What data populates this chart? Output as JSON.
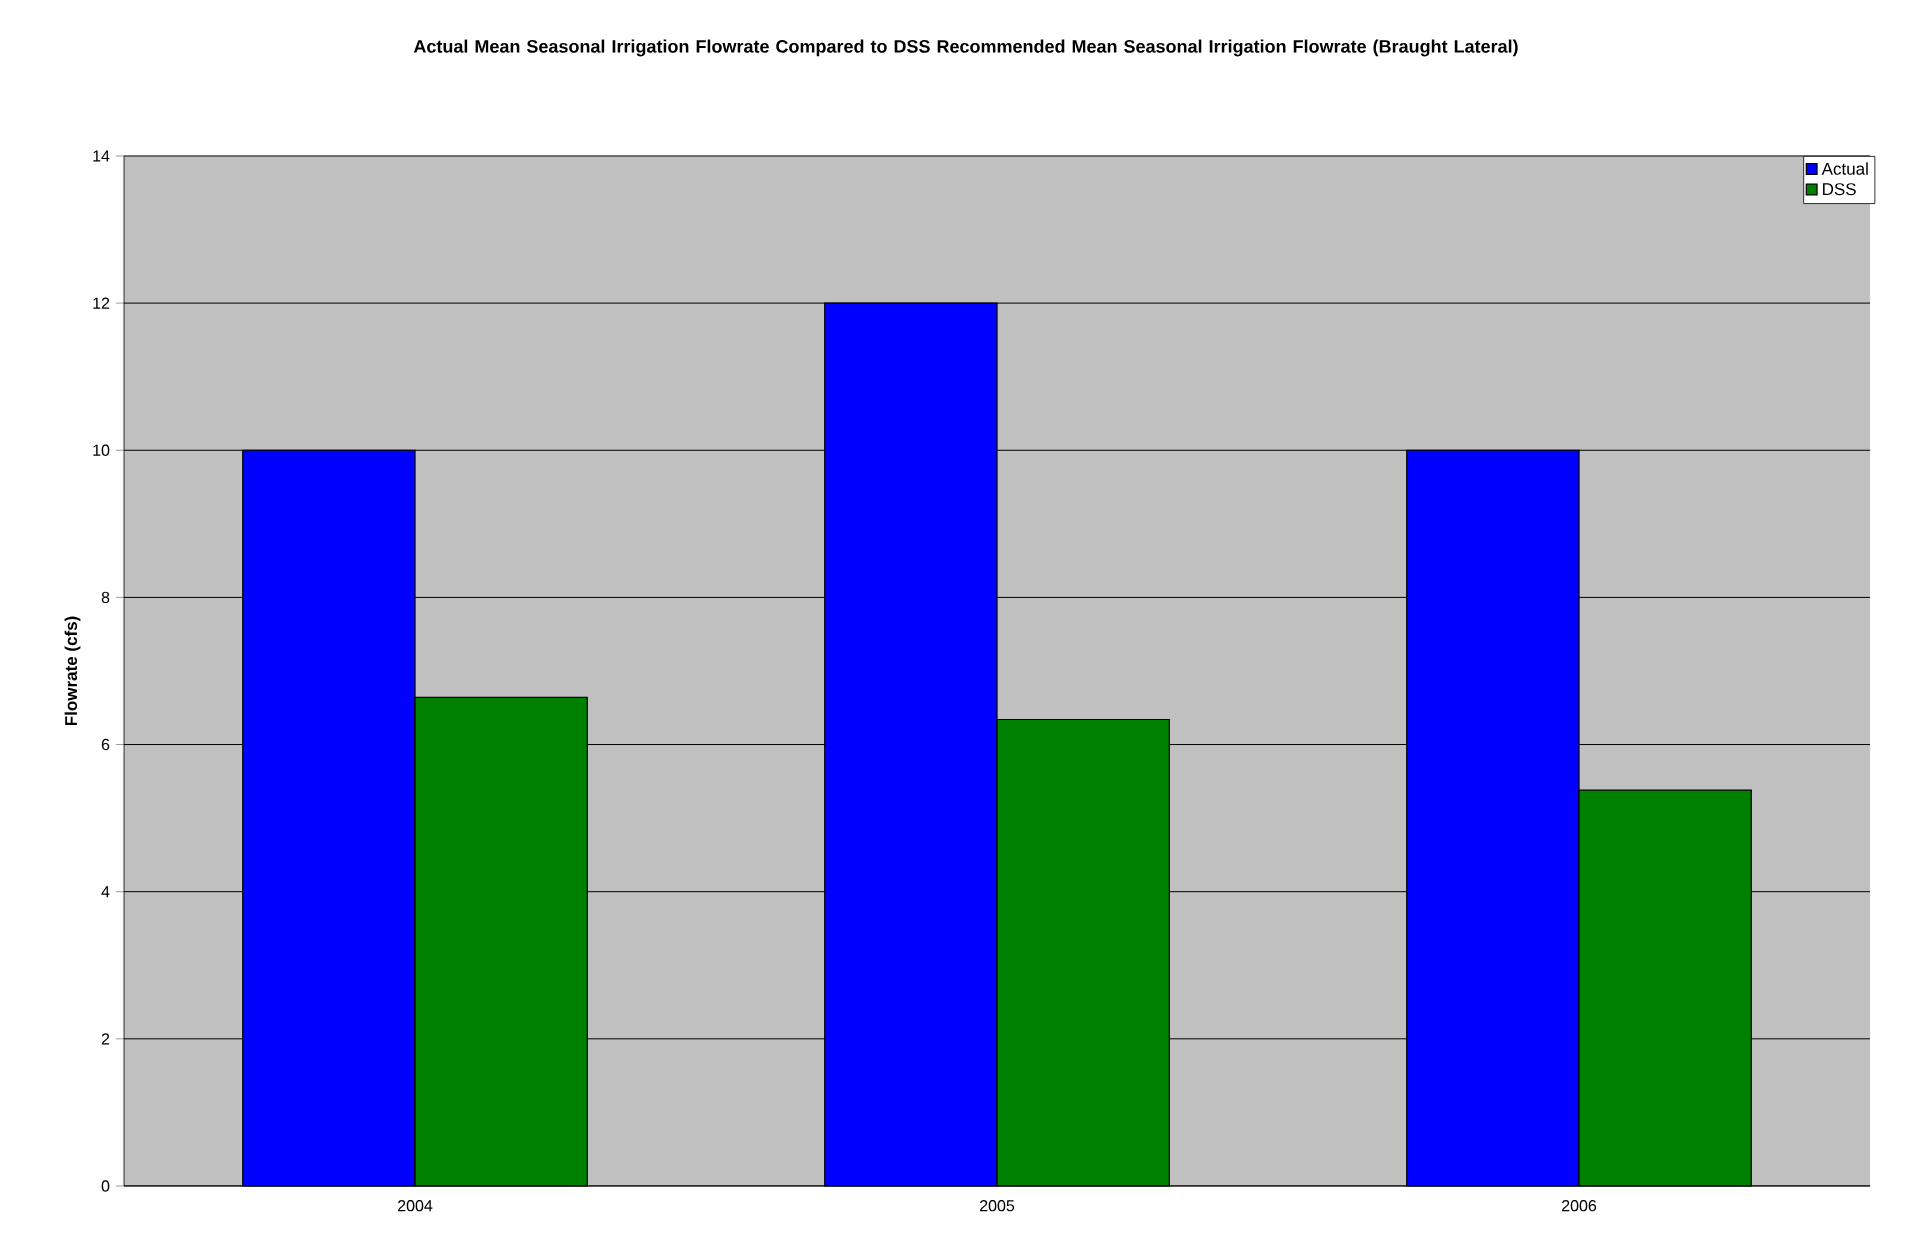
{
  "chart_data": {
    "type": "bar",
    "title": "Actual Mean Seasonal Irrigation Flowrate Compared to DSS Recommended Mean Seasonal Irrigation Flowrate (Braught Lateral)",
    "ylabel": "Flowrate (cfs)",
    "categories": [
      "2004",
      "2005",
      "2006"
    ],
    "series": [
      {
        "name": "Actual",
        "color": "#0000ff",
        "values": [
          10,
          12,
          10
        ]
      },
      {
        "name": "DSS",
        "color": "#008000",
        "values": [
          6.64,
          6.34,
          5.38
        ]
      }
    ],
    "ylim": [
      0,
      14
    ],
    "yticks": [
      0,
      2,
      4,
      6,
      8,
      10,
      12,
      14
    ],
    "grid": "y",
    "legend": "top right"
  }
}
